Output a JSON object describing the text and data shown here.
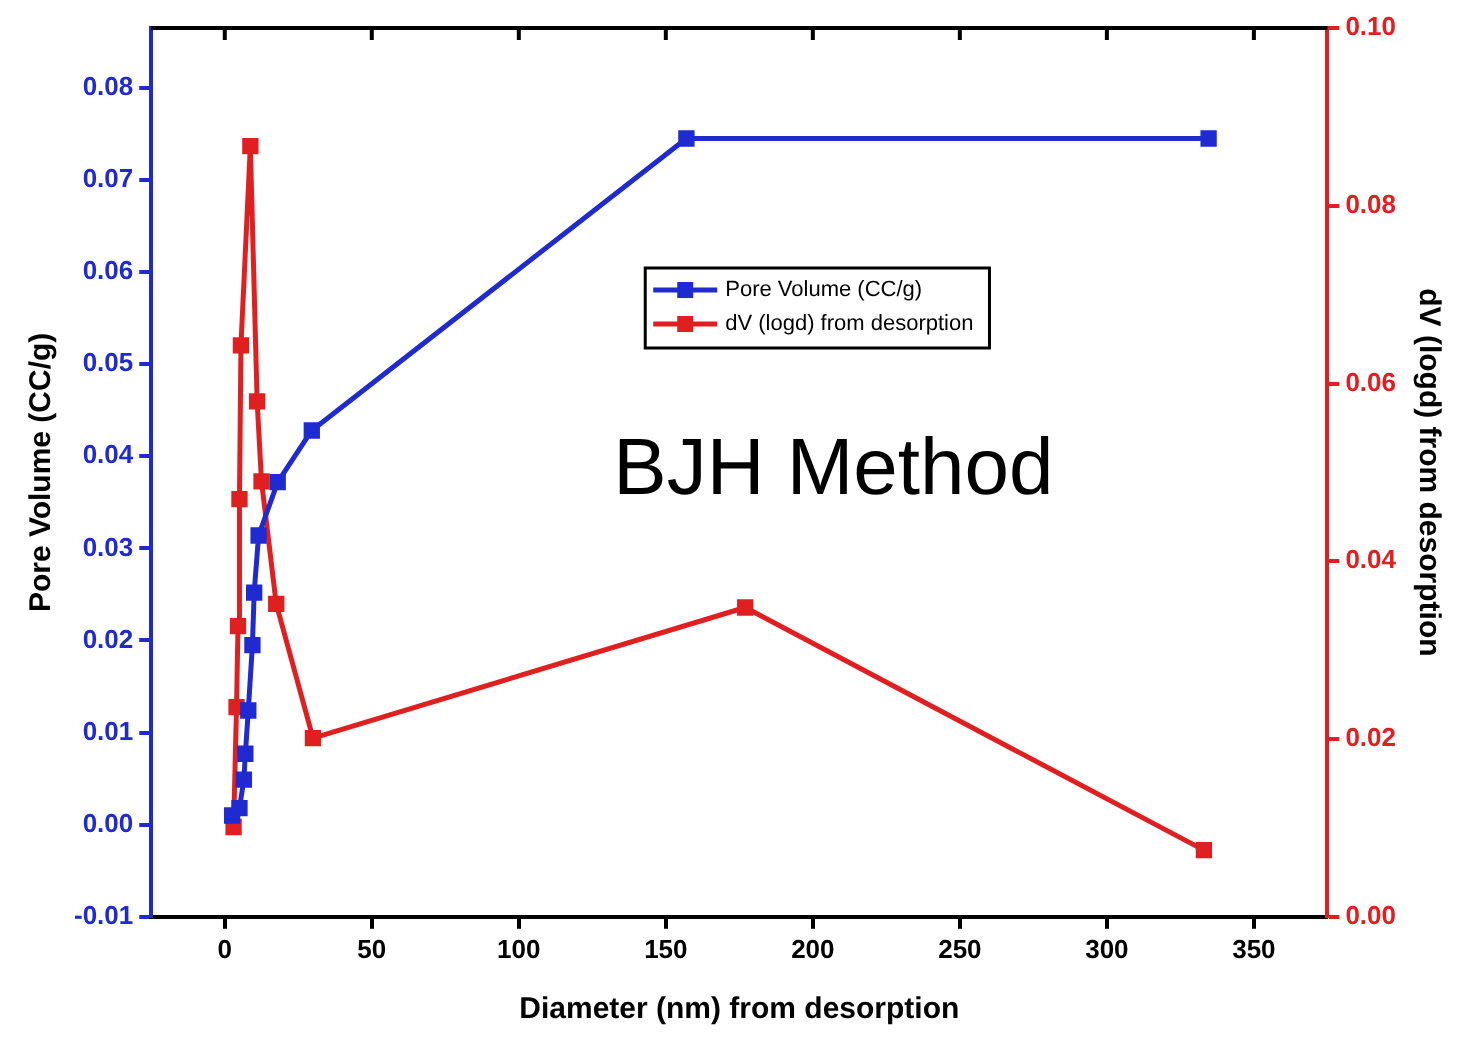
{
  "chart_data": {
    "type": "line",
    "xlabel": "Diameter (nm) from desorption",
    "ylabel": "Pore Volume (CC/g)",
    "y2label": "dV (logd) from desorption",
    "annotations": [
      "BJH Method"
    ],
    "series": [
      {
        "name": "Pore Volume (CC/g)",
        "color": "#1f2ad0",
        "x": [
          2.5,
          5,
          6.5,
          7,
          8,
          9.4,
          10,
          11.5,
          18,
          29.6,
          157,
          334.6
        ],
        "values": [
          0.001,
          0.0018,
          0.0049,
          0.0077,
          0.0124,
          0.0195,
          0.0252,
          0.0314,
          0.0372,
          0.0428,
          0.0745,
          0.0745
        ]
      },
      {
        "name": "dV (logd) from desorption",
        "color": "#e02020",
        "axis": "y2",
        "x": [
          3,
          4,
          4.5,
          5,
          5.5,
          8.7,
          11,
          12.5,
          17.5,
          30,
          177,
          333
        ],
        "values": [
          0.0101,
          0.0236,
          0.0327,
          0.047,
          0.0643,
          0.0867,
          0.058,
          0.049,
          0.0352,
          0.0201,
          0.0348,
          0.0075
        ]
      }
    ],
    "xlim": [
      -25,
      375
    ],
    "xticks": [
      0,
      50,
      100,
      150,
      200,
      250,
      300,
      350
    ],
    "ylim": [
      -0.01,
      0.0865
    ],
    "yticks": [
      -0.01,
      {
        "value": 0,
        "label": "0.00"
      },
      0.01,
      0.02,
      0.03,
      0.04,
      0.05,
      0.06,
      0.07,
      0.08
    ],
    "y2lim": [
      0,
      0.1
    ],
    "y2ticks": [
      {
        "value": 0,
        "label": "0.00"
      },
      0.02,
      0.04,
      0.06,
      0.08,
      {
        "value": 0.1,
        "label": "0.10"
      }
    ],
    "grid": false,
    "legend": "top right",
    "marker": "square",
    "line_style": "solid"
  }
}
